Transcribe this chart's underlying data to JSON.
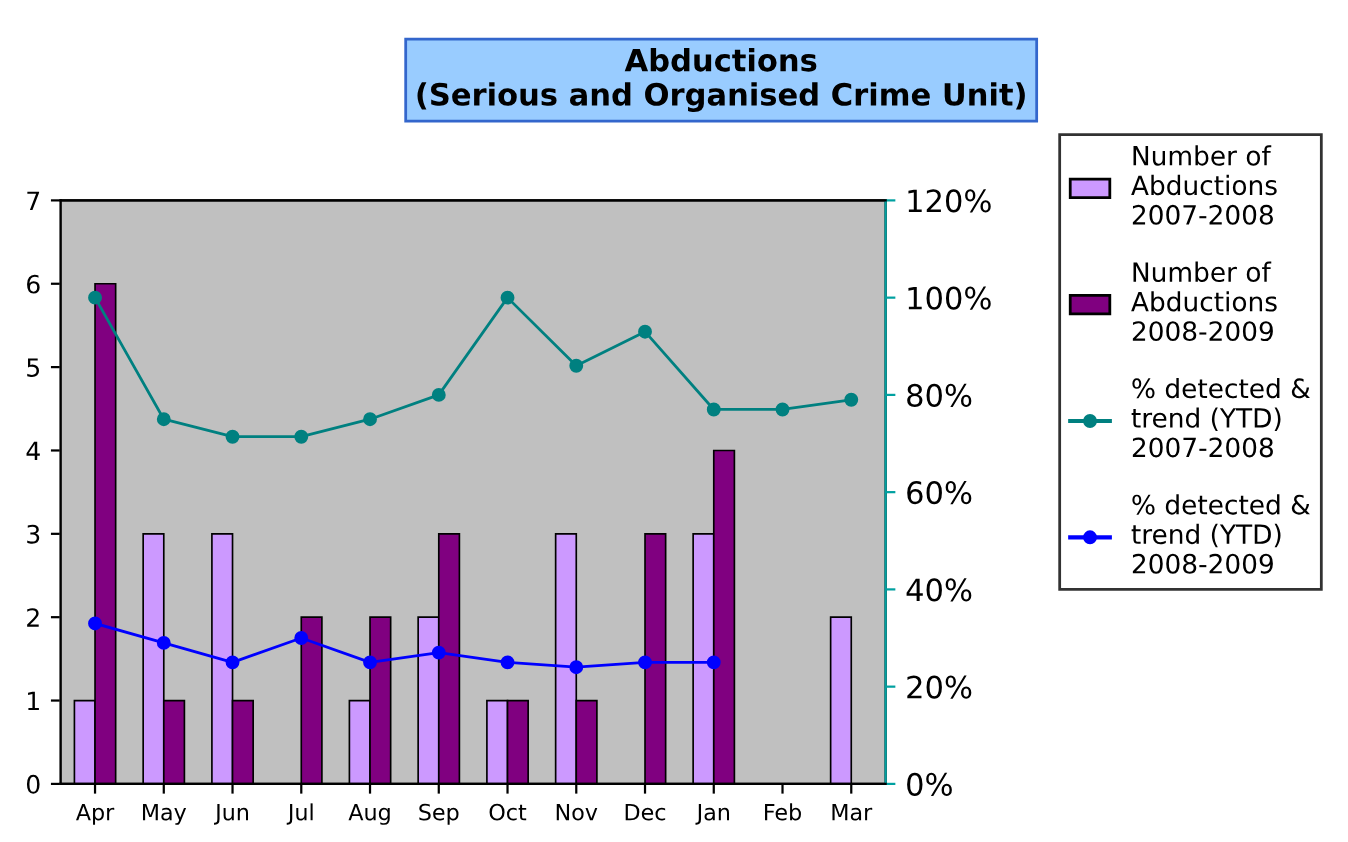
{
  "chart_data": {
    "type": "bar",
    "title": "Abductions\n(Serious and Organised Crime Unit)",
    "categories": [
      "Apr",
      "May",
      "Jun",
      "Jul",
      "Aug",
      "Sep",
      "Oct",
      "Nov",
      "Dec",
      "Jan",
      "Feb",
      "Mar"
    ],
    "series": [
      {
        "name": "Number of Abductions 2007-2008",
        "color": "#cc99ff",
        "values": [
          1,
          3,
          3,
          null,
          1,
          2,
          1,
          3,
          null,
          3,
          null,
          2
        ]
      },
      {
        "name": "Number of Abductions 2008-2009",
        "color": "#800080",
        "values": [
          6,
          1,
          1,
          2,
          2,
          3,
          1,
          1,
          3,
          4,
          null,
          null
        ]
      },
      {
        "name": "% detected & trend (YTD) 2007-2008",
        "type": "line",
        "axis": "y2",
        "color": "#008080",
        "values": [
          100,
          75,
          71.4,
          71.4,
          75,
          80,
          100,
          86,
          93,
          77,
          77,
          79
        ]
      },
      {
        "name": "% detected & trend (YTD) 2008-2009",
        "type": "line",
        "axis": "y2",
        "color": "#0000ff",
        "values": [
          33,
          29,
          25,
          30,
          25,
          27,
          25,
          24,
          25,
          25,
          null,
          null
        ]
      }
    ],
    "ylim": [
      0,
      7
    ],
    "yticks": [
      0,
      1,
      2,
      3,
      4,
      5,
      6,
      7
    ],
    "y2lim": [
      0,
      120
    ],
    "y2ticks": [
      {
        "value": 0,
        "label": "0%"
      },
      {
        "value": 20,
        "label": "20%"
      },
      {
        "value": 40,
        "label": "40%"
      },
      {
        "value": 60,
        "label": "60%"
      },
      {
        "value": 80,
        "label": "80%"
      },
      {
        "value": 100,
        "label": "100%"
      },
      {
        "value": 120,
        "label": "120%"
      }
    ],
    "marker": "circle",
    "grid": false,
    "legend": "right"
  }
}
